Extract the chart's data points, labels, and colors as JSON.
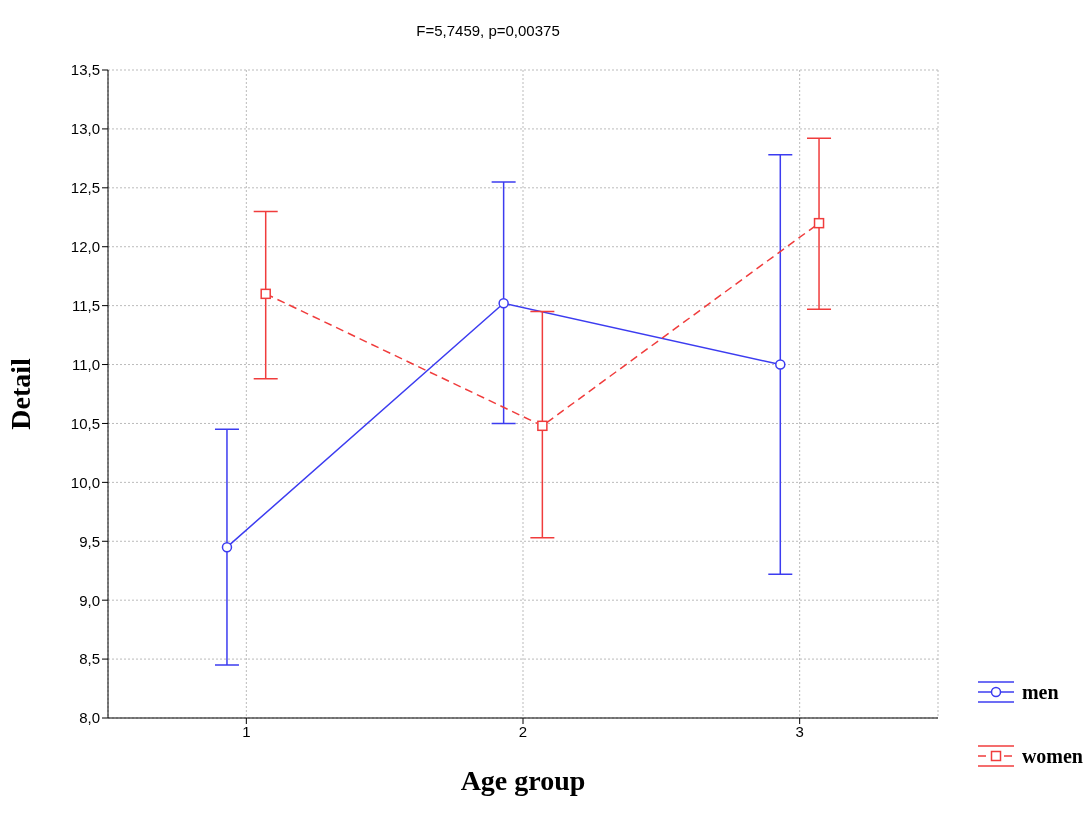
{
  "chart_data": {
    "type": "line",
    "title": "F=5,7459, p=0,00375",
    "xlabel": "Age group",
    "ylabel": "Detail",
    "xlim": [
      0.5,
      3.5
    ],
    "xticks": [
      1,
      2,
      3
    ],
    "ylim": [
      8,
      13.5
    ],
    "yticks": [
      {
        "value": 8,
        "label": "8,0"
      },
      {
        "value": 8.5,
        "label": "8,5"
      },
      {
        "value": 9,
        "label": "9,0"
      },
      {
        "value": 9.5,
        "label": "9,5"
      },
      {
        "value": 10,
        "label": "10,0"
      },
      {
        "value": 10.5,
        "label": "10,5"
      },
      {
        "value": 11,
        "label": "11,0"
      },
      {
        "value": 11.5,
        "label": "11,5"
      },
      {
        "value": 12,
        "label": "12,0"
      },
      {
        "value": 12.5,
        "label": "12,5"
      },
      {
        "value": 13,
        "label": "13,0"
      },
      {
        "value": 13.5,
        "label": "13,5"
      }
    ],
    "grid": true,
    "legend": "bottom right",
    "series": [
      {
        "name": "men",
        "color": "#3c3cf0",
        "marker": "circle",
        "line_style": "solid",
        "x": [
          0.93,
          1.93,
          2.93
        ],
        "values": [
          9.45,
          11.52,
          11.0
        ],
        "errors": [
          [
            8.45,
            10.45
          ],
          [
            10.5,
            12.55
          ],
          [
            9.22,
            12.78
          ]
        ]
      },
      {
        "name": "women",
        "color": "#f03c3c",
        "marker": "square",
        "line_style": "dashed",
        "x": [
          1.07,
          2.07,
          3.07
        ],
        "values": [
          11.6,
          10.48,
          12.2
        ],
        "errors": [
          [
            10.88,
            12.3
          ],
          [
            9.53,
            11.45
          ],
          [
            11.47,
            12.92
          ]
        ]
      }
    ]
  }
}
